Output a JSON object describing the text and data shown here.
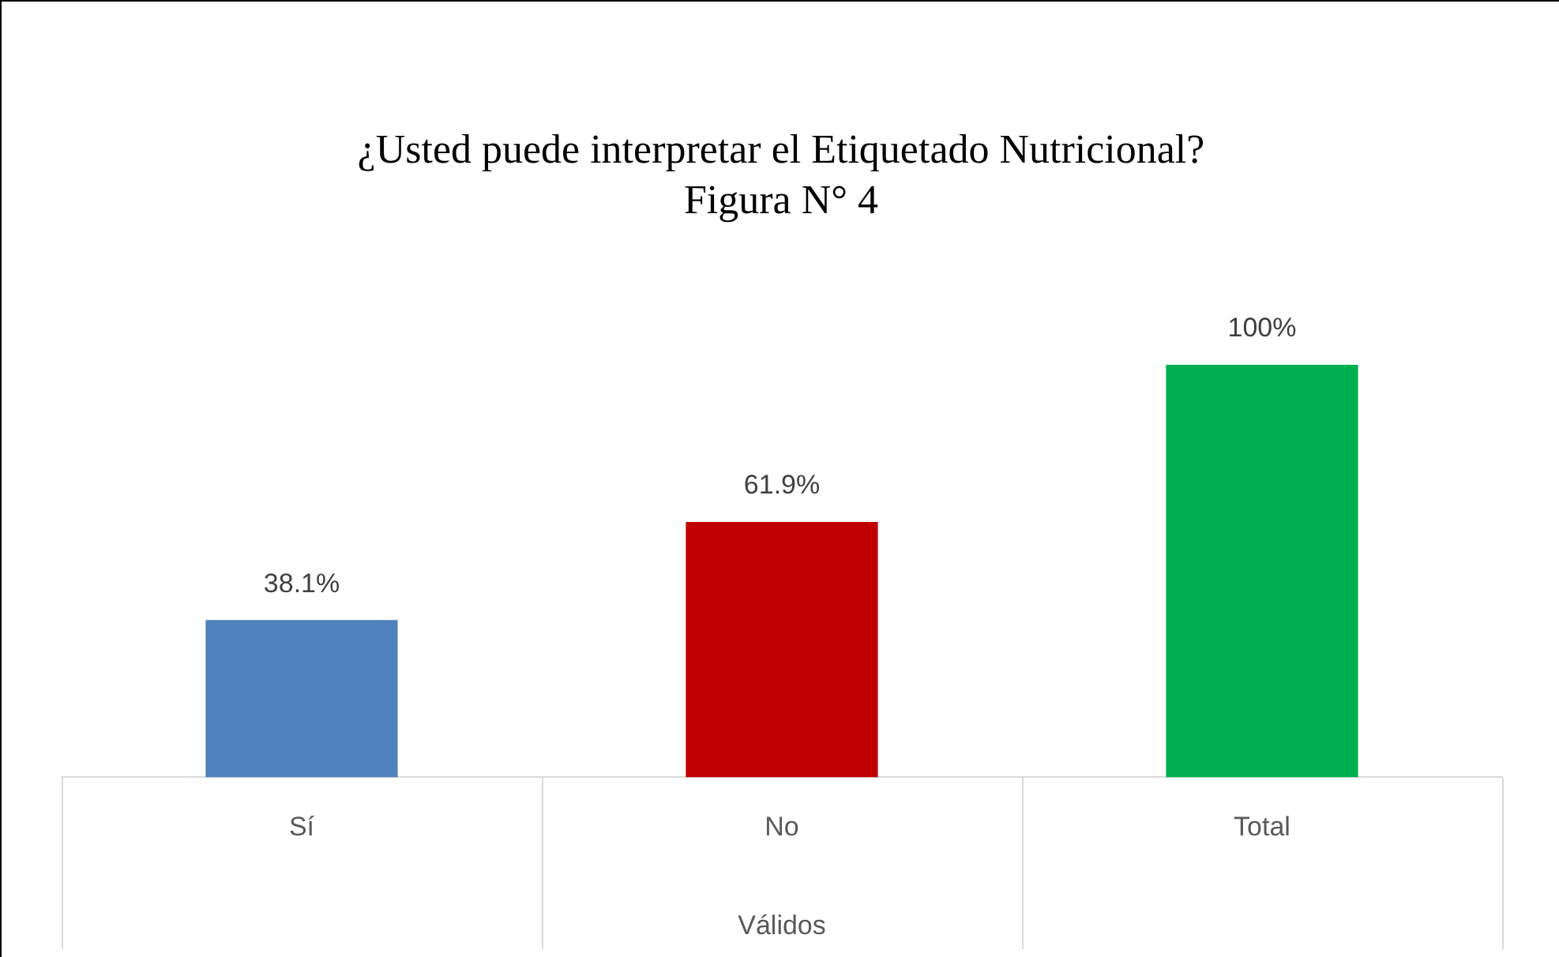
{
  "chart_data": {
    "type": "bar",
    "title": "¿Usted puede interpretar el Etiquetado Nutricional?",
    "subtitle": "Figura N° 4",
    "xlabel": "Válidos",
    "categories": [
      "Sí",
      "No",
      "Total"
    ],
    "values": [
      38.1,
      61.9,
      100
    ],
    "value_labels": [
      "38.1%",
      "61.9%",
      "100%"
    ],
    "colors": [
      "#4f81bd",
      "#c00000",
      "#00b050"
    ],
    "legend": false,
    "grid": false
  }
}
